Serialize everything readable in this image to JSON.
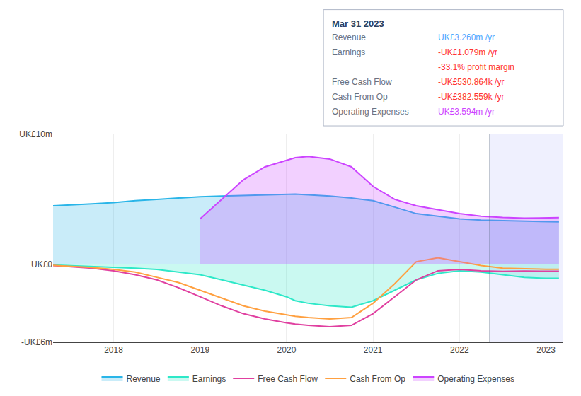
{
  "chart_data": {
    "type": "line",
    "x": [
      2017.3,
      2017.5,
      2017.75,
      2018.0,
      2018.25,
      2018.5,
      2018.75,
      2019.0,
      2019.25,
      2019.5,
      2019.75,
      2020.0,
      2020.1,
      2020.25,
      2020.5,
      2020.75,
      2021.0,
      2021.25,
      2021.5,
      2021.75,
      2022.0,
      2022.25,
      2022.5,
      2022.75,
      2023.0,
      2023.15
    ],
    "series": [
      {
        "name": "Revenue",
        "color": "#29b5e8",
        "type": "area",
        "values": [
          4.5,
          4.55,
          4.65,
          4.75,
          4.9,
          5.0,
          5.1,
          5.2,
          5.25,
          5.3,
          5.35,
          5.4,
          5.4,
          5.35,
          5.25,
          5.1,
          4.9,
          4.4,
          3.9,
          3.7,
          3.5,
          3.4,
          3.35,
          3.32,
          3.26,
          3.26
        ]
      },
      {
        "name": "Earnings",
        "color": "#2de8c8",
        "type": "area",
        "values": [
          -0.05,
          -0.1,
          -0.15,
          -0.2,
          -0.3,
          -0.4,
          -0.6,
          -0.8,
          -1.2,
          -1.6,
          -2.0,
          -2.5,
          -2.8,
          -3.0,
          -3.2,
          -3.3,
          -2.8,
          -2.0,
          -1.2,
          -0.7,
          -0.5,
          -0.6,
          -0.8,
          -1.0,
          -1.079,
          -1.079
        ]
      },
      {
        "name": "Free Cash Flow",
        "color": "#e040a0",
        "type": "line",
        "values": [
          -0.1,
          -0.2,
          -0.3,
          -0.5,
          -0.8,
          -1.2,
          -1.8,
          -2.5,
          -3.2,
          -3.8,
          -4.2,
          -4.5,
          -4.6,
          -4.7,
          -4.8,
          -4.7,
          -3.8,
          -2.5,
          -1.2,
          -0.5,
          -0.4,
          -0.5,
          -0.55,
          -0.52,
          -0.5308,
          -0.5308
        ]
      },
      {
        "name": "Cash From Op",
        "color": "#ffa040",
        "type": "line",
        "values": [
          -0.08,
          -0.15,
          -0.25,
          -0.4,
          -0.6,
          -1.0,
          -1.4,
          -2.0,
          -2.6,
          -3.2,
          -3.6,
          -3.9,
          -4.0,
          -4.1,
          -4.2,
          -4.1,
          -3.0,
          -1.5,
          0.2,
          0.5,
          0.2,
          -0.1,
          -0.3,
          -0.35,
          -0.3826,
          -0.3826
        ]
      },
      {
        "name": "Operating Expenses",
        "color": "#cc44ff",
        "type": "area",
        "values": [
          null,
          null,
          null,
          null,
          null,
          null,
          null,
          3.5,
          5.0,
          6.5,
          7.5,
          8.0,
          8.2,
          8.3,
          8.1,
          7.5,
          6.0,
          5.0,
          4.5,
          4.2,
          3.9,
          3.7,
          3.6,
          3.55,
          3.594,
          3.594
        ]
      }
    ],
    "xlim": [
      2017.3,
      2023.2
    ],
    "xticks": [
      2018,
      2019,
      2020,
      2021,
      2022,
      2023
    ],
    "ylim": [
      -6,
      10
    ],
    "yticks": [
      {
        "value": 10,
        "label": "UK£10m"
      },
      {
        "value": 0,
        "label": "UK£0"
      },
      {
        "value": -6,
        "label": "-UK£6m"
      }
    ],
    "grid": true,
    "legend": "bottom",
    "highlight": [
      2022.35,
      2023.2
    ],
    "annotations": [
      {
        "text": "Mar 31 2023"
      },
      {
        "label": "Revenue",
        "text": "UK£3.260m /yr",
        "color": "#4da6ff"
      },
      {
        "label": "Earnings",
        "text": "-UK£1.079m /yr",
        "color": "#ff3333"
      },
      {
        "text": "-33.1% profit margin",
        "color": "#ff3333"
      },
      {
        "label": "Free Cash Flow",
        "text": "-UK£530.864k /yr",
        "color": "#ff3333"
      },
      {
        "label": "Cash From Op",
        "text": "-UK£382.559k /yr",
        "color": "#ff3333"
      },
      {
        "label": "Operating Expenses",
        "text": "UK£3.594m /yr",
        "color": "#cc44ff"
      }
    ]
  }
}
